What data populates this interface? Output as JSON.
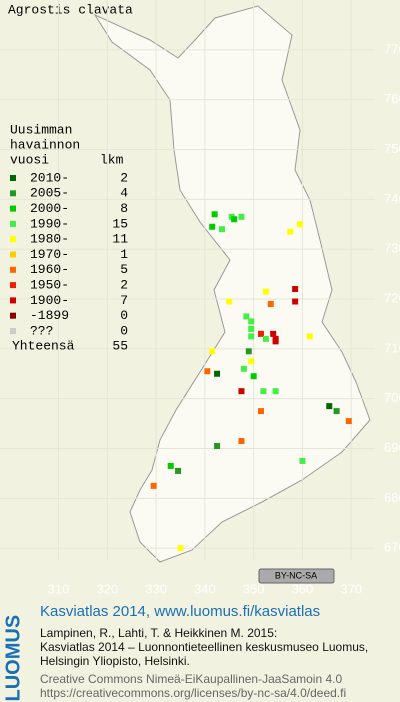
{
  "title": "Agrostis clavata",
  "legend": {
    "header": [
      "Uusimman",
      "havainnon",
      "vuosi"
    ],
    "count_header": "lkm",
    "rows": [
      {
        "name": "2010-",
        "color": "#006600",
        "count": 2
      },
      {
        "name": "2005-",
        "color": "#229922",
        "count": 4
      },
      {
        "name": "2000-",
        "color": "#00cc00",
        "count": 8
      },
      {
        "name": "1990-",
        "color": "#44ee44",
        "count": 15
      },
      {
        "name": "1980-",
        "color": "#ffff00",
        "count": 11
      },
      {
        "name": "1970-",
        "color": "#ffcc00",
        "count": 1
      },
      {
        "name": "1960-",
        "color": "#ff6600",
        "count": 5
      },
      {
        "name": "1950-",
        "color": "#ee2200",
        "count": 2
      },
      {
        "name": "1900-",
        "color": "#cc0000",
        "count": 7
      },
      {
        "name": "-1899",
        "color": "#880000",
        "count": 0
      },
      {
        "name": "???",
        "color": "#cccccc",
        "count": 0
      }
    ],
    "total_label": "Yhteensä",
    "total": 55
  },
  "map": {
    "xlim": [
      298,
      380
    ],
    "ylim": [
      660,
      780
    ],
    "xticks": [
      310,
      320,
      330,
      340,
      350,
      360,
      370
    ],
    "yticks": [
      670,
      680,
      690,
      700,
      710,
      720,
      730,
      740,
      750,
      760,
      770
    ],
    "points": [
      {
        "x": 342,
        "y": 737,
        "period": 2
      },
      {
        "x": 343.5,
        "y": 734,
        "period": 3
      },
      {
        "x": 345.5,
        "y": 736.5,
        "period": 3
      },
      {
        "x": 346,
        "y": 736,
        "period": 2
      },
      {
        "x": 347.5,
        "y": 736.5,
        "period": 3
      },
      {
        "x": 341.5,
        "y": 734.5,
        "period": 2
      },
      {
        "x": 357.5,
        "y": 733.5,
        "period": 4
      },
      {
        "x": 359.5,
        "y": 735,
        "period": 4
      },
      {
        "x": 352.5,
        "y": 721.5,
        "period": 4
      },
      {
        "x": 345,
        "y": 719.5,
        "period": 4
      },
      {
        "x": 341.5,
        "y": 709.5,
        "period": 4
      },
      {
        "x": 361.5,
        "y": 712.5,
        "period": 4
      },
      {
        "x": 358.5,
        "y": 722,
        "period": 8
      },
      {
        "x": 358.5,
        "y": 719.5,
        "period": 8
      },
      {
        "x": 351.5,
        "y": 713,
        "period": 7
      },
      {
        "x": 354,
        "y": 713,
        "period": 8
      },
      {
        "x": 354.5,
        "y": 712,
        "period": 8
      },
      {
        "x": 352.5,
        "y": 712,
        "period": 3
      },
      {
        "x": 348.5,
        "y": 716.5,
        "period": 3
      },
      {
        "x": 354.5,
        "y": 711.5,
        "period": 8
      },
      {
        "x": 349.5,
        "y": 715.5,
        "period": 3
      },
      {
        "x": 349.5,
        "y": 714,
        "period": 3
      },
      {
        "x": 349.5,
        "y": 712.5,
        "period": 3
      },
      {
        "x": 349,
        "y": 709.5,
        "period": 1
      },
      {
        "x": 348,
        "y": 706,
        "period": 3
      },
      {
        "x": 350,
        "y": 704.5,
        "period": 2
      },
      {
        "x": 352,
        "y": 701.5,
        "period": 3
      },
      {
        "x": 354.5,
        "y": 701.5,
        "period": 3
      },
      {
        "x": 347.5,
        "y": 701.5,
        "period": 8
      },
      {
        "x": 340.5,
        "y": 705.5,
        "period": 6
      },
      {
        "x": 342.5,
        "y": 705,
        "period": 0
      },
      {
        "x": 351.5,
        "y": 697.5,
        "period": 6
      },
      {
        "x": 347.5,
        "y": 691.5,
        "period": 6
      },
      {
        "x": 342.5,
        "y": 690.5,
        "period": 1
      },
      {
        "x": 360,
        "y": 687.5,
        "period": 3
      },
      {
        "x": 365.5,
        "y": 698.5,
        "period": 0
      },
      {
        "x": 367,
        "y": 697.5,
        "period": 1
      },
      {
        "x": 369.5,
        "y": 695.5,
        "period": 6
      },
      {
        "x": 333,
        "y": 686.5,
        "period": 2
      },
      {
        "x": 334.5,
        "y": 685.5,
        "period": 1
      },
      {
        "x": 329.5,
        "y": 682.5,
        "period": 6
      },
      {
        "x": 335,
        "y": 670,
        "period": 4
      },
      {
        "x": 349.5,
        "y": 707.5,
        "period": 4
      },
      {
        "x": 353.5,
        "y": 719,
        "period": 6
      }
    ],
    "license_badge": "BY-NC-SA"
  },
  "footer": {
    "logo": "LUOMUS",
    "link": "Kasviatlas 2014, www.luomus.fi/kasviatlas",
    "lines": [
      "Lampinen, R., Lahti, T. & Heikkinen M. 2015:",
      "Kasviatlas 2014 – Luonnontieteellinen keskusmuseo Luomus,",
      "Helsingin Yliopisto, Helsinki."
    ],
    "license": [
      "Creative Commons Nimeä-EiKaupallinen-JaaSamoin 4.0",
      "https://creativecommons.org/licenses/by-nc-sa/4.0/deed.fi"
    ]
  }
}
